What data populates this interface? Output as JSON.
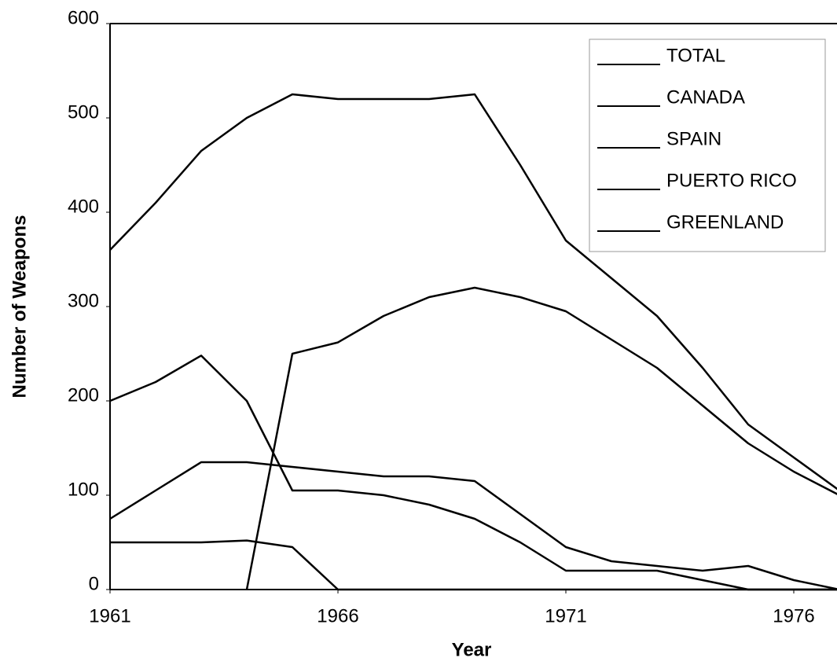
{
  "chart_data": {
    "type": "line",
    "x_label": "Year",
    "y_label": "Number of Weapons",
    "x": [
      1961,
      1962,
      1963,
      1964,
      1965,
      1966,
      1967,
      1968,
      1969,
      1970,
      1971,
      1972,
      1973,
      1974,
      1975,
      1976,
      1977
    ],
    "series": [
      {
        "name": "TOTAL",
        "color": "#000000",
        "values": [
          360,
          410,
          465,
          500,
          525,
          520,
          520,
          520,
          525,
          450,
          370,
          330,
          290,
          235,
          175,
          140,
          105
        ]
      },
      {
        "name": "CANADA",
        "color": "#000000",
        "values": [
          null,
          null,
          null,
          0,
          250,
          262,
          290,
          310,
          320,
          310,
          295,
          265,
          235,
          195,
          155,
          125,
          100
        ]
      },
      {
        "name": "SPAIN",
        "color": "#000000",
        "values": [
          75,
          105,
          135,
          135,
          130,
          125,
          120,
          120,
          115,
          80,
          45,
          30,
          25,
          20,
          25,
          10,
          0
        ]
      },
      {
        "name": "PUERTO RICO",
        "color": "#000000",
        "values": [
          200,
          220,
          248,
          200,
          105,
          105,
          100,
          90,
          75,
          50,
          20,
          20,
          20,
          10,
          0,
          0,
          0
        ]
      },
      {
        "name": "GREENLAND",
        "color": "#000000",
        "values": [
          50,
          50,
          50,
          52,
          45,
          0,
          0,
          0,
          0,
          0,
          0,
          0,
          0,
          0,
          0,
          0,
          0
        ]
      }
    ],
    "xlim": [
      1961,
      1977
    ],
    "xticks": [
      1961,
      1966,
      1971,
      1976
    ],
    "ylim": [
      0,
      600
    ],
    "yticks": [
      0,
      100,
      200,
      300,
      400,
      500,
      600
    ],
    "legend": "upper right"
  }
}
